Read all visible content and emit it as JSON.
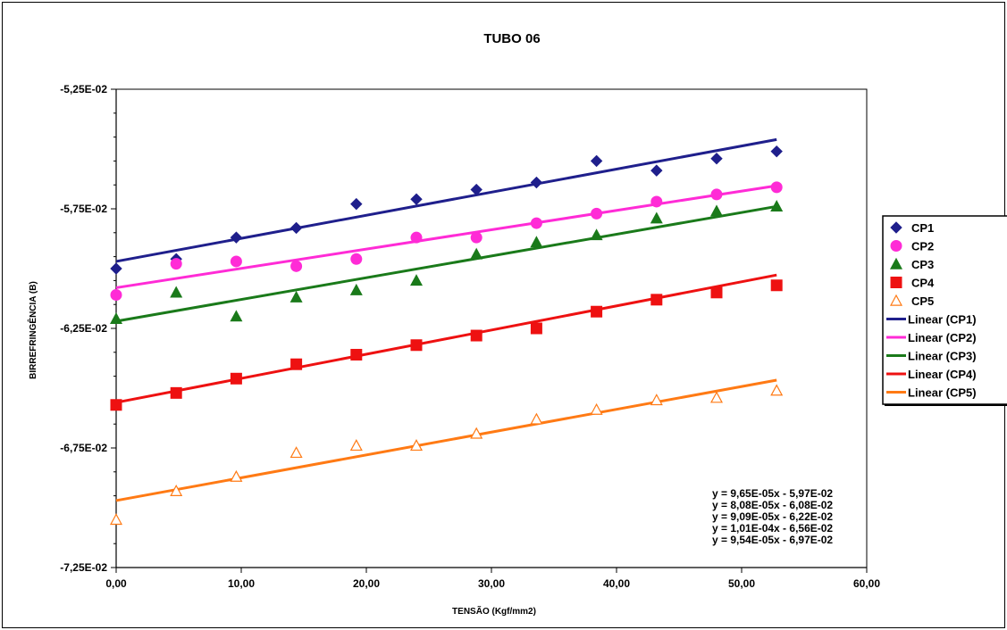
{
  "chart_data": {
    "type": "scatter",
    "title": "TUBO 06",
    "xlabel": "TENSÃO (Kgf/mm2)",
    "ylabel": "BIRREFRINGÊNCIA (B)",
    "xlim": [
      0,
      60
    ],
    "ylim": [
      -0.0725,
      -0.0525
    ],
    "x_ticks": [
      0,
      10,
      20,
      30,
      40,
      50,
      60
    ],
    "x_tick_labels": [
      "0,00",
      "10,00",
      "20,00",
      "30,00",
      "40,00",
      "50,00",
      "60,00"
    ],
    "y_ticks": [
      -0.0525,
      -0.0575,
      -0.0625,
      -0.0675,
      -0.0725
    ],
    "y_tick_labels": [
      "-5,25E-02",
      "-5,75E-02",
      "-6,25E-02",
      "-6,75E-02",
      "-7,25E-02"
    ],
    "grid": false,
    "legend_position": "right",
    "series": [
      {
        "name": "CP1",
        "marker": "diamond",
        "filled": true,
        "color": "#1f1f8c",
        "x": [
          0,
          4.8,
          9.6,
          14.4,
          19.2,
          24.0,
          28.8,
          33.6,
          38.4,
          43.2,
          48.0,
          52.8
        ],
        "y": [
          -0.06,
          -0.0596,
          -0.0587,
          -0.0583,
          -0.0573,
          -0.0571,
          -0.0567,
          -0.0564,
          -0.0555,
          -0.0559,
          -0.0554,
          -0.0551
        ]
      },
      {
        "name": "CP2",
        "marker": "circle",
        "filled": true,
        "color": "#ff2bd6",
        "x": [
          0,
          4.8,
          9.6,
          14.4,
          19.2,
          24.0,
          28.8,
          33.6,
          38.4,
          43.2,
          48.0,
          52.8
        ],
        "y": [
          -0.0611,
          -0.0598,
          -0.0597,
          -0.0599,
          -0.0596,
          -0.0587,
          -0.0587,
          -0.0581,
          -0.0577,
          -0.0572,
          -0.0569,
          -0.0566
        ]
      },
      {
        "name": "CP3",
        "marker": "triangle",
        "filled": true,
        "color": "#1a7a1a",
        "x": [
          0,
          4.8,
          9.6,
          14.4,
          19.2,
          24.0,
          28.8,
          33.6,
          38.4,
          43.2,
          48.0,
          52.8
        ],
        "y": [
          -0.0621,
          -0.061,
          -0.062,
          -0.0612,
          -0.0609,
          -0.0605,
          -0.0594,
          -0.0589,
          -0.0586,
          -0.0579,
          -0.0576,
          -0.0574
        ]
      },
      {
        "name": "CP4",
        "marker": "square",
        "filled": true,
        "color": "#ee1111",
        "x": [
          0,
          4.8,
          9.6,
          14.4,
          19.2,
          24.0,
          28.8,
          33.6,
          38.4,
          43.2,
          48.0,
          52.8
        ],
        "y": [
          -0.0657,
          -0.0652,
          -0.0646,
          -0.064,
          -0.0636,
          -0.0632,
          -0.0628,
          -0.0625,
          -0.0618,
          -0.0613,
          -0.061,
          -0.0607
        ]
      },
      {
        "name": "CP5",
        "marker": "triangle",
        "filled": false,
        "color": "#ff7a14",
        "x": [
          0,
          4.8,
          9.6,
          14.4,
          19.2,
          24.0,
          28.8,
          33.6,
          38.4,
          43.2,
          48.0,
          52.8
        ],
        "y": [
          -0.0705,
          -0.0693,
          -0.0687,
          -0.0677,
          -0.0674,
          -0.0674,
          -0.0669,
          -0.0663,
          -0.0659,
          -0.0655,
          -0.0654,
          -0.0651
        ]
      }
    ],
    "trendlines": [
      {
        "name": "Linear (CP1)",
        "color": "#1f1f8c",
        "slope": 9.65e-05,
        "intercept": -0.0597,
        "x_range": [
          0,
          52.8
        ]
      },
      {
        "name": "Linear (CP2)",
        "color": "#ff2bd6",
        "slope": 8.08e-05,
        "intercept": -0.0608,
        "x_range": [
          0,
          52.8
        ]
      },
      {
        "name": "Linear (CP3)",
        "color": "#1a7a1a",
        "slope": 9.09e-05,
        "intercept": -0.0622,
        "x_range": [
          0,
          52.8
        ]
      },
      {
        "name": "Linear (CP4)",
        "color": "#ee1111",
        "slope": 0.000101,
        "intercept": -0.0656,
        "x_range": [
          0,
          52.8
        ]
      },
      {
        "name": "Linear (CP5)",
        "color": "#ff7a14",
        "slope": 9.54e-05,
        "intercept": -0.0697,
        "x_range": [
          0,
          52.8
        ]
      }
    ],
    "equations": [
      "y = 9,65E-05x - 5,97E-02",
      "y = 8,08E-05x - 6,08E-02",
      "y = 9,09E-05x - 6,22E-02",
      "y = 1,01E-04x - 6,56E-02",
      "y = 9,54E-05x - 6,97E-02"
    ]
  }
}
